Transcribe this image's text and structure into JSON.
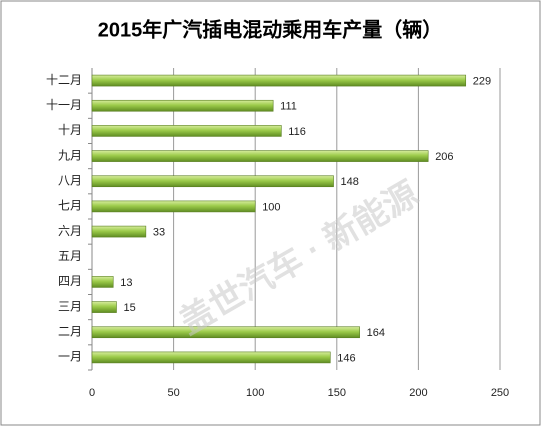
{
  "chart_data": {
    "type": "hbar",
    "title": "2015年广汽插电混动乘用车产量（辆）",
    "categories": [
      "一月",
      "二月",
      "三月",
      "四月",
      "五月",
      "六月",
      "七月",
      "八月",
      "九月",
      "十月",
      "十一月",
      "十二月"
    ],
    "values": [
      146,
      164,
      15,
      13,
      null,
      33,
      100,
      148,
      206,
      116,
      111,
      229
    ],
    "color": "#8dbb3c",
    "xlim": [
      0,
      250
    ],
    "xticks": [
      0,
      50,
      100,
      150,
      200,
      250
    ],
    "grid": true,
    "watermark": "盖世汽车 · 新能源"
  }
}
